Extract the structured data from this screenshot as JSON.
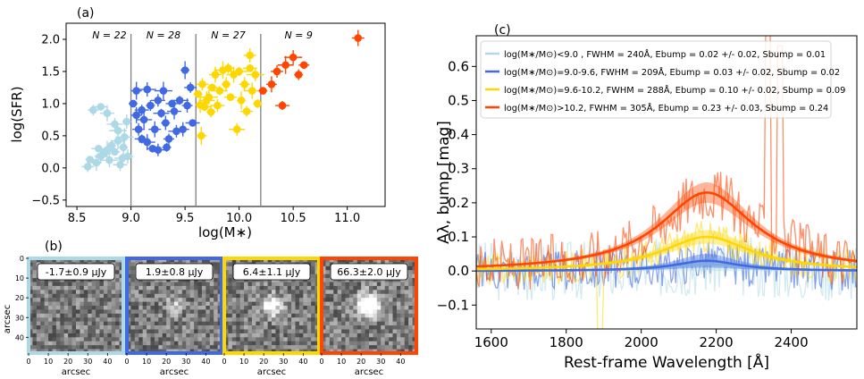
{
  "colors": {
    "bin1": "#add8e6",
    "bin2": "#4169e1",
    "bin3": "#ffd700",
    "bin4": "#ff4500"
  },
  "chart_data": [
    {
      "panel": "(a)",
      "type": "scatter",
      "xlabel": "log(M∗)",
      "ylabel": "log(SFR)",
      "xlim": [
        8.4,
        11.35
      ],
      "ylim": [
        -0.6,
        2.25
      ],
      "xticks": [
        "8.5",
        "9.0",
        "9.5",
        "10.0",
        "10.5",
        "11.0"
      ],
      "yticks": [
        "−0.5",
        "0.0",
        "0.5",
        "1.0",
        "1.5",
        "2.0"
      ],
      "xtick_values": [
        8.5,
        9.0,
        9.5,
        10.0,
        10.5,
        11.0
      ],
      "ytick_values": [
        -0.5,
        0.0,
        0.5,
        1.0,
        1.5,
        2.0
      ],
      "bin_edges": [
        9.0,
        9.6,
        10.2
      ],
      "bin_labels": [
        "N = 22",
        "N = 28",
        "N = 27",
        "N = 9"
      ],
      "grid": false,
      "series": [
        {
          "color_key": "bin1",
          "points": [
            [
              8.62,
              0.13
            ],
            [
              8.68,
              0.08
            ],
            [
              8.72,
              0.18
            ],
            [
              8.75,
              0.22
            ],
            [
              8.78,
              0.28
            ],
            [
              8.8,
              0.12
            ],
            [
              8.82,
              0.35
            ],
            [
              8.85,
              0.25
            ],
            [
              8.88,
              0.42
            ],
            [
              8.9,
              0.05
            ],
            [
              8.92,
              0.15
            ],
            [
              8.94,
              0.48
            ],
            [
              8.96,
              0.72
            ],
            [
              8.65,
              0.9
            ],
            [
              8.72,
              0.95
            ],
            [
              8.78,
              0.85
            ],
            [
              8.85,
              0.68
            ],
            [
              8.88,
              0.58
            ],
            [
              8.93,
              0.32
            ],
            [
              8.97,
              0.18
            ],
            [
              8.6,
              0.02
            ],
            [
              8.7,
              0.3
            ]
          ]
        },
        {
          "color_key": "bin2",
          "points": [
            [
              9.02,
              1.0
            ],
            [
              9.05,
              0.82
            ],
            [
              9.07,
              0.6
            ],
            [
              9.1,
              0.45
            ],
            [
              9.12,
              0.75
            ],
            [
              9.15,
              1.22
            ],
            [
              9.18,
              0.97
            ],
            [
              9.2,
              0.3
            ],
            [
              9.22,
              0.6
            ],
            [
              9.25,
              1.05
            ],
            [
              9.28,
              0.85
            ],
            [
              9.3,
              1.2
            ],
            [
              9.32,
              0.7
            ],
            [
              9.35,
              0.45
            ],
            [
              9.38,
              1.0
            ],
            [
              9.4,
              0.88
            ],
            [
              9.42,
              0.57
            ],
            [
              9.45,
              1.05
            ],
            [
              9.5,
              1.52
            ],
            [
              9.52,
              0.97
            ],
            [
              9.55,
              1.25
            ],
            [
              9.57,
              0.7
            ],
            [
              9.15,
              0.4
            ],
            [
              9.25,
              0.28
            ],
            [
              9.33,
              0.32
            ],
            [
              9.05,
              1.2
            ],
            [
              9.48,
              0.6
            ],
            [
              9.1,
              0.9
            ]
          ]
        },
        {
          "color_key": "bin3",
          "points": [
            [
              9.62,
              1.15
            ],
            [
              9.64,
              0.98
            ],
            [
              9.66,
              1.3
            ],
            [
              9.68,
              0.95
            ],
            [
              9.7,
              1.05
            ],
            [
              9.72,
              1.1
            ],
            [
              9.74,
              0.87
            ],
            [
              9.75,
              1.25
            ],
            [
              9.78,
              1.45
            ],
            [
              9.8,
              0.97
            ],
            [
              9.82,
              1.2
            ],
            [
              9.85,
              1.52
            ],
            [
              9.88,
              1.3
            ],
            [
              9.9,
              1.55
            ],
            [
              9.92,
              1.1
            ],
            [
              9.95,
              1.45
            ],
            [
              9.98,
              0.6
            ],
            [
              10.0,
              1.5
            ],
            [
              10.02,
              1.05
            ],
            [
              10.05,
              1.3
            ],
            [
              10.07,
              0.88
            ],
            [
              10.1,
              1.55
            ],
            [
              10.12,
              1.2
            ],
            [
              10.15,
              1.45
            ],
            [
              10.17,
              1.0
            ],
            [
              9.65,
              0.5
            ],
            [
              10.1,
              1.75
            ]
          ]
        },
        {
          "color_key": "bin4",
          "points": [
            [
              10.22,
              1.2
            ],
            [
              10.3,
              1.3
            ],
            [
              10.35,
              1.5
            ],
            [
              10.4,
              0.97
            ],
            [
              10.43,
              1.6
            ],
            [
              10.5,
              1.72
            ],
            [
              10.55,
              1.45
            ],
            [
              10.6,
              1.6
            ],
            [
              11.1,
              2.02
            ]
          ]
        }
      ]
    },
    {
      "panel": "(b)",
      "type": "image",
      "xlabel": "arcsec",
      "ylabel": "arcsec",
      "ticks": [
        "0",
        "10",
        "20",
        "30",
        "40"
      ],
      "tick_values": [
        0,
        10,
        20,
        30,
        40
      ],
      "extent": 48,
      "stamps": [
        {
          "label": "-1.7±0.9 μJy",
          "color_key": "bin1",
          "source": 0
        },
        {
          "label": "1.9±0.8 μJy",
          "color_key": "bin2",
          "source": 0.35
        },
        {
          "label": "6.4±1.1 μJy",
          "color_key": "bin3",
          "source": 0.75
        },
        {
          "label": "66.3±2.0 μJy",
          "color_key": "bin4",
          "source": 1.0
        }
      ]
    },
    {
      "panel": "(c)",
      "type": "line",
      "xlabel": "Rest-frame Wavelength [Å]",
      "ylabel": "Aλ, bump [mag]",
      "xlim": [
        1560,
        2575
      ],
      "ylim": [
        -0.17,
        0.69
      ],
      "xticks": [
        "1600",
        "1800",
        "2000",
        "2200",
        "2400"
      ],
      "xtick_values": [
        1600,
        1800,
        2000,
        2200,
        2400
      ],
      "yticks": [
        "−0.1",
        "0.0",
        "0.1",
        "0.2",
        "0.3",
        "0.4",
        "0.5",
        "0.6"
      ],
      "ytick_values": [
        -0.1,
        0.0,
        0.1,
        0.2,
        0.3,
        0.4,
        0.5,
        0.6
      ],
      "legend_position": "upper",
      "center": 2175,
      "series": [
        {
          "legend": "log(M∗/M⊙)<9.0 , FWHM = 240Å, Ebump = 0.02 +/- 0.02, Sbump = 0.01",
          "color_key": "bin1",
          "fwhm": 240,
          "E": 0.02,
          "err": 0.02
        },
        {
          "legend": "log(M∗/M⊙)=9.0-9.6, FWHM = 209Å, Ebump = 0.03 +/- 0.02, Sbump = 0.02",
          "color_key": "bin2",
          "fwhm": 209,
          "E": 0.03,
          "err": 0.02
        },
        {
          "legend": "log(M∗/M⊙)=9.6-10.2, FWHM = 288Å, Ebump = 0.10 +/- 0.02, Sbump = 0.09",
          "color_key": "bin3",
          "fwhm": 288,
          "E": 0.1,
          "err": 0.02
        },
        {
          "legend": "log(M∗/M⊙)>10.2, FWHM = 305Å, Ebump = 0.23 +/- 0.03, Sbump = 0.24",
          "color_key": "bin4",
          "fwhm": 305,
          "E": 0.23,
          "err": 0.03
        }
      ]
    }
  ]
}
